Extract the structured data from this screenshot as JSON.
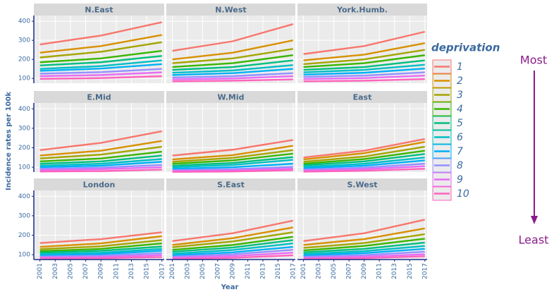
{
  "y_label": "Incidence rates per 100k",
  "x_label": "Year",
  "annotations": [
    "Most",
    "Least"
  ],
  "legend": {
    "title": "deprivation",
    "names": [
      "1",
      "2",
      "3",
      "4",
      "5",
      "6",
      "7",
      "8",
      "9",
      "10"
    ],
    "colors": [
      "#F8766D",
      "#D89000",
      "#A3A500",
      "#39B600",
      "#00BF7D",
      "#00BFC4",
      "#00B0F6",
      "#9590FF",
      "#E76BF3",
      "#FF62BC"
    ]
  },
  "x": [
    2001,
    2009,
    2017
  ],
  "xlim": [
    2000.2,
    2017.3
  ],
  "xticks": [
    2001,
    2003,
    2005,
    2007,
    2009,
    2011,
    2013,
    2015,
    2017
  ],
  "ylim": [
    75,
    430
  ],
  "yticks": [
    100,
    200,
    300,
    400
  ],
  "grid": true,
  "chart_data": [
    {
      "type": "line",
      "title": "N.East",
      "series": [
        {
          "values": [
            278,
            325,
            395
          ]
        },
        {
          "values": [
            235,
            270,
            328
          ]
        },
        {
          "values": [
            210,
            240,
            290
          ]
        },
        {
          "values": [
            185,
            205,
            245
          ]
        },
        {
          "values": [
            168,
            185,
            218
          ]
        },
        {
          "values": [
            150,
            165,
            195
          ]
        },
        {
          "values": [
            140,
            152,
            175
          ]
        },
        {
          "values": [
            125,
            133,
            150
          ]
        },
        {
          "values": [
            112,
            118,
            132
          ]
        },
        {
          "values": [
            98,
            102,
            112
          ]
        }
      ]
    },
    {
      "type": "line",
      "title": "N.West",
      "series": [
        {
          "values": [
            245,
            295,
            385
          ]
        },
        {
          "values": [
            200,
            235,
            300
          ]
        },
        {
          "values": [
            180,
            205,
            255
          ]
        },
        {
          "values": [
            160,
            180,
            222
          ]
        },
        {
          "values": [
            145,
            160,
            195
          ]
        },
        {
          "values": [
            130,
            142,
            170
          ]
        },
        {
          "values": [
            118,
            128,
            150
          ]
        },
        {
          "values": [
            105,
            112,
            128
          ]
        },
        {
          "values": [
            95,
            100,
            112
          ]
        },
        {
          "values": [
            85,
            88,
            95
          ]
        }
      ]
    },
    {
      "type": "line",
      "title": "York.Humb.",
      "series": [
        {
          "values": [
            228,
            270,
            345
          ]
        },
        {
          "values": [
            195,
            225,
            285
          ]
        },
        {
          "values": [
            175,
            200,
            250
          ]
        },
        {
          "values": [
            160,
            180,
            222
          ]
        },
        {
          "values": [
            145,
            160,
            195
          ]
        },
        {
          "values": [
            132,
            145,
            172
          ]
        },
        {
          "values": [
            120,
            130,
            152
          ]
        },
        {
          "values": [
            108,
            115,
            132
          ]
        },
        {
          "values": [
            97,
            102,
            115
          ]
        },
        {
          "values": [
            85,
            88,
            97
          ]
        }
      ]
    },
    {
      "type": "line",
      "title": "E.Mid",
      "series": [
        {
          "values": [
            188,
            225,
            285
          ]
        },
        {
          "values": [
            160,
            185,
            235
          ]
        },
        {
          "values": [
            145,
            165,
            205
          ]
        },
        {
          "values": [
            130,
            145,
            180
          ]
        },
        {
          "values": [
            118,
            130,
            160
          ]
        },
        {
          "values": [
            108,
            118,
            142
          ]
        },
        {
          "values": [
            100,
            108,
            128
          ]
        },
        {
          "values": [
            92,
            98,
            112
          ]
        },
        {
          "values": [
            85,
            90,
            100
          ]
        },
        {
          "values": [
            78,
            80,
            88
          ]
        }
      ]
    },
    {
      "type": "line",
      "title": "W.Mid",
      "series": [
        {
          "values": [
            160,
            190,
            240
          ]
        },
        {
          "values": [
            140,
            162,
            210
          ]
        },
        {
          "values": [
            128,
            148,
            188
          ]
        },
        {
          "values": [
            118,
            135,
            170
          ]
        },
        {
          "values": [
            108,
            122,
            152
          ]
        },
        {
          "values": [
            100,
            112,
            138
          ]
        },
        {
          "values": [
            92,
            100,
            118
          ]
        },
        {
          "values": [
            85,
            90,
            102
          ]
        },
        {
          "values": [
            80,
            84,
            93
          ]
        },
        {
          "values": [
            76,
            78,
            85
          ]
        }
      ]
    },
    {
      "type": "line",
      "title": "East",
      "series": [
        {
          "values": [
            150,
            185,
            245
          ]
        },
        {
          "values": [
            140,
            172,
            230
          ]
        },
        {
          "values": [
            128,
            155,
            205
          ]
        },
        {
          "values": [
            118,
            142,
            185
          ]
        },
        {
          "values": [
            110,
            130,
            168
          ]
        },
        {
          "values": [
            102,
            118,
            150
          ]
        },
        {
          "values": [
            95,
            108,
            135
          ]
        },
        {
          "values": [
            88,
            98,
            118
          ]
        },
        {
          "values": [
            82,
            90,
            105
          ]
        },
        {
          "values": [
            77,
            82,
            92
          ]
        }
      ]
    },
    {
      "type": "line",
      "title": "London",
      "series": [
        {
          "values": [
            160,
            180,
            215
          ]
        },
        {
          "values": [
            140,
            158,
            195
          ]
        },
        {
          "values": [
            128,
            143,
            175
          ]
        },
        {
          "values": [
            118,
            130,
            158
          ]
        },
        {
          "values": [
            110,
            120,
            142
          ]
        },
        {
          "values": [
            102,
            110,
            130
          ]
        },
        {
          "values": [
            96,
            103,
            120
          ]
        },
        {
          "values": [
            90,
            95,
            108
          ]
        },
        {
          "values": [
            85,
            88,
            98
          ]
        },
        {
          "values": [
            80,
            82,
            88
          ]
        }
      ]
    },
    {
      "type": "line",
      "title": "S.East",
      "series": [
        {
          "values": [
            170,
            210,
            275
          ]
        },
        {
          "values": [
            150,
            185,
            240
          ]
        },
        {
          "values": [
            138,
            168,
            215
          ]
        },
        {
          "values": [
            125,
            150,
            192
          ]
        },
        {
          "values": [
            115,
            137,
            175
          ]
        },
        {
          "values": [
            105,
            124,
            158
          ]
        },
        {
          "values": [
            97,
            112,
            140
          ]
        },
        {
          "values": [
            90,
            102,
            125
          ]
        },
        {
          "values": [
            84,
            93,
            110
          ]
        },
        {
          "values": [
            78,
            84,
            97
          ]
        }
      ]
    },
    {
      "type": "line",
      "title": "S.West",
      "series": [
        {
          "values": [
            170,
            210,
            280
          ]
        },
        {
          "values": [
            150,
            180,
            235
          ]
        },
        {
          "values": [
            135,
            160,
            205
          ]
        },
        {
          "values": [
            122,
            145,
            182
          ]
        },
        {
          "values": [
            112,
            130,
            162
          ]
        },
        {
          "values": [
            103,
            118,
            145
          ]
        },
        {
          "values": [
            96,
            108,
            130
          ]
        },
        {
          "values": [
            89,
            98,
            115
          ]
        },
        {
          "values": [
            83,
            90,
            102
          ]
        },
        {
          "values": [
            78,
            82,
            92
          ]
        }
      ]
    }
  ]
}
